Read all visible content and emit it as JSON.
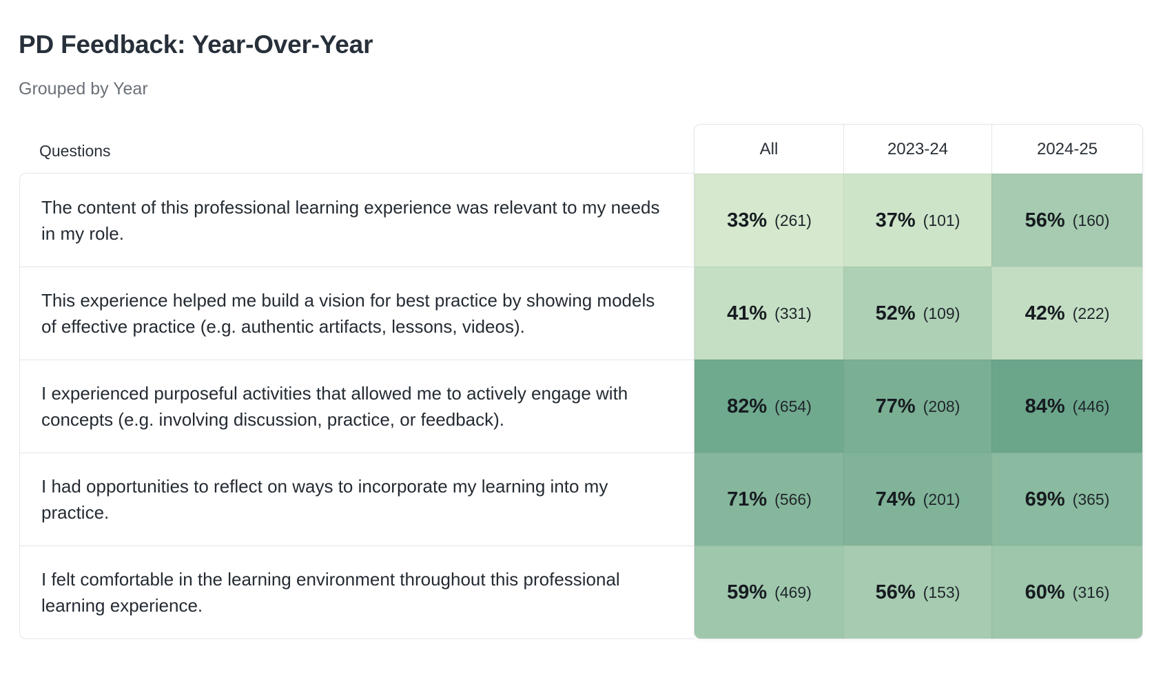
{
  "title": "PD Feedback: Year-Over-Year",
  "subtitle": "Grouped by Year",
  "questions_header": "Questions",
  "columns": [
    "All",
    "2023-24",
    "2024-25"
  ],
  "questions": [
    "The content of this professional learning experience was relevant to my needs in my role.",
    "This experience helped me build a vision for best practice by showing models of effective practice (e.g. authentic artifacts, lessons, videos).",
    "I experienced purposeful activities that allowed me to actively engage with concepts (e.g. involving discussion, practice, or feedback).",
    "I had opportunities to reflect on ways to incorporate my learning into my practice.",
    "I felt comfortable in the learning environment throughout this professional learning experience."
  ],
  "colors": {
    "scale_low": "#dcedd2",
    "scale_high": "#69a58a"
  },
  "chart_data": {
    "type": "heatmap",
    "title": "PD Feedback: Year-Over-Year",
    "subtitle": "Grouped by Year",
    "row_header": "Questions",
    "columns": [
      "All",
      "2023-24",
      "2024-25"
    ],
    "cells": [
      [
        {
          "pct": "33%",
          "value": 33,
          "count": "(261)"
        },
        {
          "pct": "37%",
          "value": 37,
          "count": "(101)"
        },
        {
          "pct": "56%",
          "value": 56,
          "count": "(160)"
        }
      ],
      [
        {
          "pct": "41%",
          "value": 41,
          "count": "(331)"
        },
        {
          "pct": "52%",
          "value": 52,
          "count": "(109)"
        },
        {
          "pct": "42%",
          "value": 42,
          "count": "(222)"
        }
      ],
      [
        {
          "pct": "82%",
          "value": 82,
          "count": "(654)"
        },
        {
          "pct": "77%",
          "value": 77,
          "count": "(208)"
        },
        {
          "pct": "84%",
          "value": 84,
          "count": "(446)"
        }
      ],
      [
        {
          "pct": "71%",
          "value": 71,
          "count": "(566)"
        },
        {
          "pct": "74%",
          "value": 74,
          "count": "(201)"
        },
        {
          "pct": "69%",
          "value": 69,
          "count": "(365)"
        }
      ],
      [
        {
          "pct": "59%",
          "value": 59,
          "count": "(469)"
        },
        {
          "pct": "56%",
          "value": 56,
          "count": "(153)"
        },
        {
          "pct": "60%",
          "value": 60,
          "count": "(316)"
        }
      ]
    ]
  }
}
